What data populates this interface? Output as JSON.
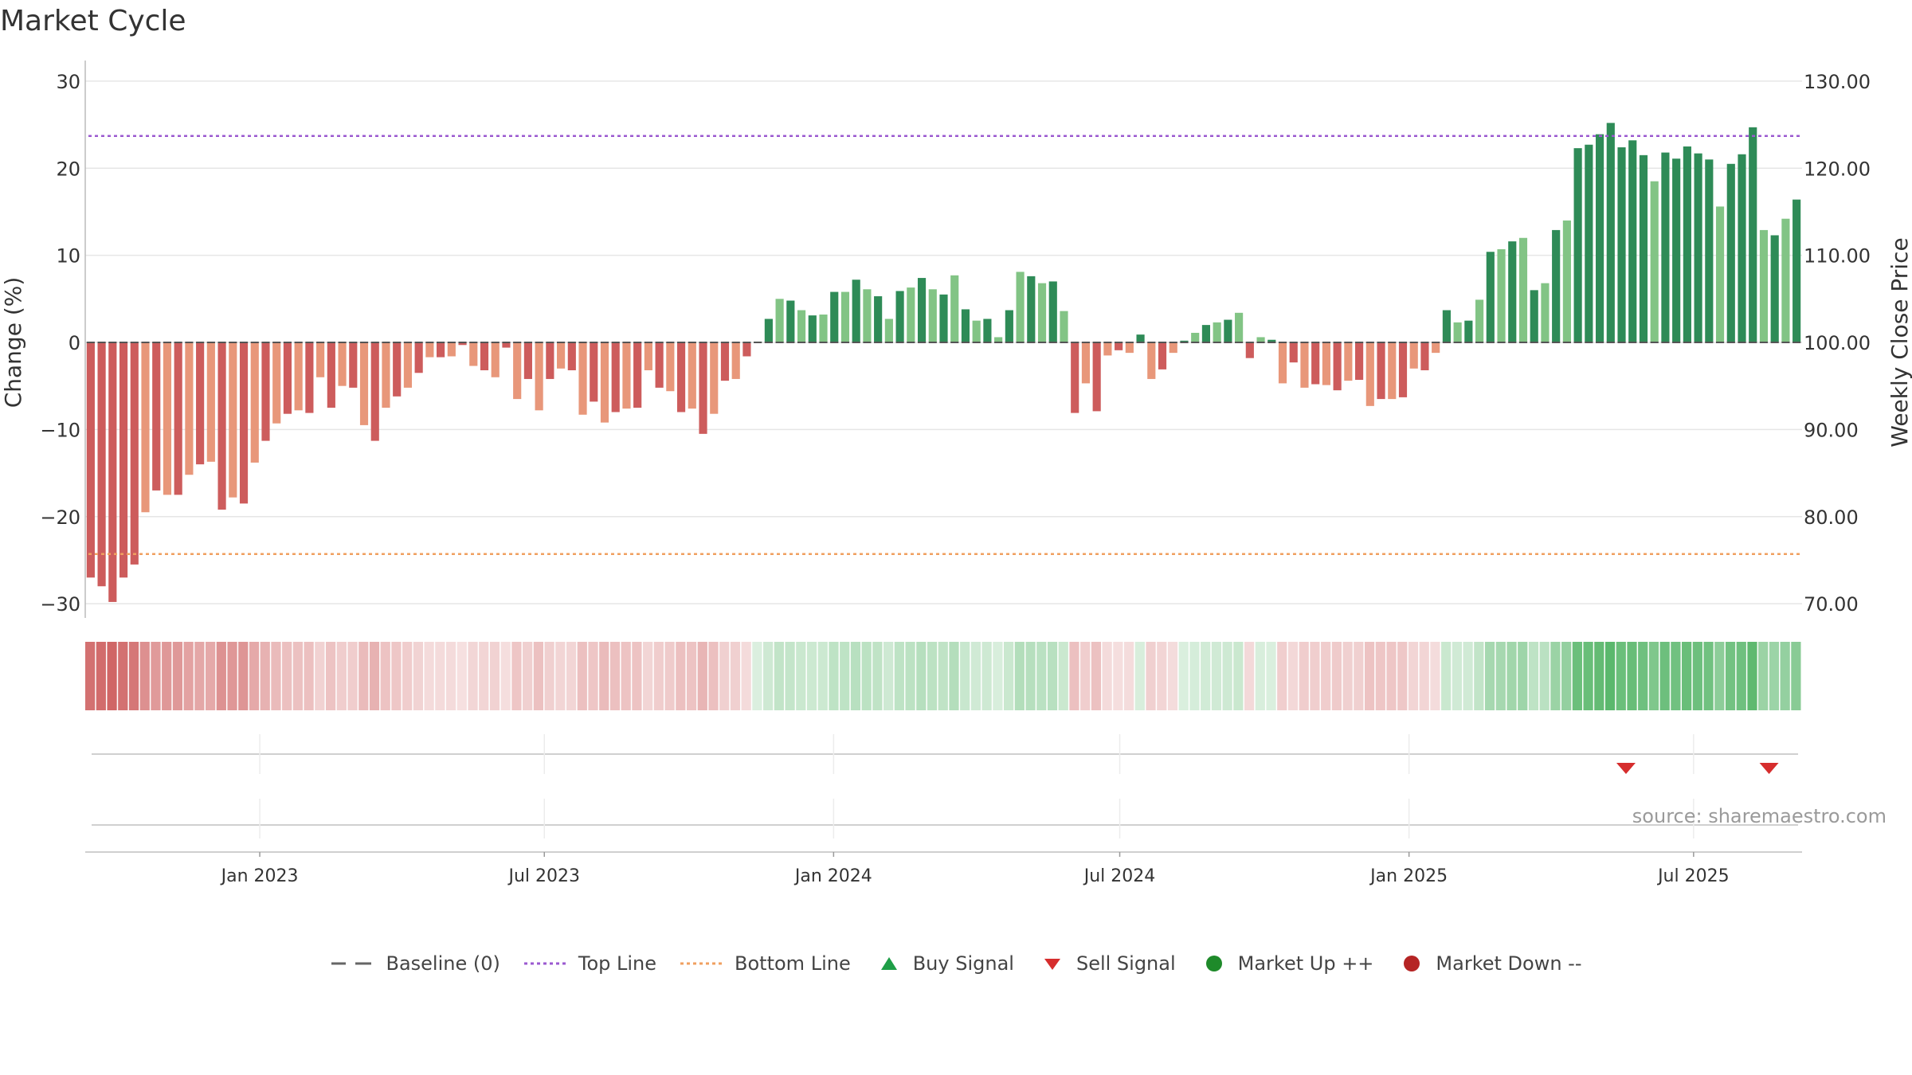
{
  "title": "Market Cycle",
  "source": "source: sharemaestro.com",
  "chart_data": {
    "type": "bar",
    "title": "Market Cycle",
    "ylabel": "Change (%)",
    "y2label": "Weekly Close Price",
    "ylim": [
      -32,
      32
    ],
    "y2lim": [
      68.0,
      132.0
    ],
    "yticks": [
      -30,
      -20,
      -10,
      0,
      10,
      20,
      30
    ],
    "yticklabels": [
      "−30",
      "−20",
      "−10",
      "0",
      "10",
      "20",
      "30"
    ],
    "y2ticks": [
      70,
      80,
      90,
      100,
      110,
      120,
      130
    ],
    "y2ticklabels": [
      "70.00",
      "80.00",
      "90.00",
      "100.00",
      "110.00",
      "120.00",
      "130.00"
    ],
    "top_line": 23.7,
    "bottom_line": -24.3,
    "x_start": "2022-09-12",
    "x_end": "2025-09-08",
    "x_ticks": [
      {
        "date": "2023-01-01",
        "label": "Jan 2023"
      },
      {
        "date": "2023-07-01",
        "label": "Jul 2023"
      },
      {
        "date": "2024-01-01",
        "label": "Jan 2024"
      },
      {
        "date": "2024-07-01",
        "label": "Jul 2024"
      },
      {
        "date": "2025-01-01",
        "label": "Jan 2025"
      },
      {
        "date": "2025-07-01",
        "label": "Jul 2025"
      }
    ],
    "series": [
      {
        "name": "Change (%)",
        "values": [
          -27.0,
          -28.0,
          -29.8,
          -27.0,
          -25.5,
          -19.5,
          -17.0,
          -17.5,
          -17.5,
          -15.2,
          -14.0,
          -13.7,
          -19.2,
          -17.8,
          -18.5,
          -13.8,
          -11.3,
          -9.3,
          -8.2,
          -7.8,
          -8.1,
          -4.0,
          -7.5,
          -5.0,
          -5.2,
          -9.5,
          -11.3,
          -7.5,
          -6.2,
          -5.2,
          -3.5,
          -1.7,
          -1.7,
          -1.6,
          -0.3,
          -2.7,
          -3.2,
          -4.0,
          -0.6,
          -6.5,
          -4.2,
          -7.8,
          -4.2,
          -3.0,
          -3.2,
          -8.3,
          -6.8,
          -9.2,
          -8.0,
          -7.6,
          -7.5,
          -3.2,
          -5.2,
          -5.6,
          -8.0,
          -7.6,
          -10.5,
          -8.2,
          -4.4,
          -4.2,
          -1.6,
          0.1,
          2.7,
          5.0,
          4.8,
          3.7,
          3.1,
          3.2,
          5.8,
          5.8,
          7.2,
          6.1,
          5.3,
          2.7,
          5.9,
          6.3,
          7.4,
          6.1,
          5.5,
          7.7,
          3.8,
          2.5,
          2.7,
          0.6,
          3.7,
          8.1,
          7.6,
          6.8,
          7.0,
          3.6,
          -8.1,
          -4.7,
          -7.9,
          -1.5,
          -0.9,
          -1.2,
          0.9,
          -4.2,
          -3.1,
          -1.2,
          0.2,
          1.1,
          2.0,
          2.3,
          2.6,
          3.4,
          -1.8,
          0.6,
          0.3,
          -4.7,
          -2.3,
          -5.2,
          -4.8,
          -4.9,
          -5.5,
          -4.4,
          -4.3,
          -7.3,
          -6.5,
          -6.5,
          -6.3,
          -3.0,
          -3.2,
          -1.2,
          3.7,
          2.3,
          2.5,
          4.9,
          10.4,
          10.7,
          11.6,
          12.0,
          6.0,
          6.8,
          12.9,
          14.0,
          22.3,
          22.7,
          23.9,
          25.2,
          22.4,
          23.2,
          21.5,
          18.5,
          21.8,
          21.1,
          22.5,
          21.7,
          21.0,
          15.6,
          20.5,
          21.6,
          24.7,
          12.9,
          12.3,
          14.2,
          16.4
        ]
      }
    ],
    "legend": [
      {
        "label": "Baseline (0)",
        "symbol": "dash",
        "color": "#666666"
      },
      {
        "label": "Top Line",
        "symbol": "dot-line",
        "color": "#9b59d0"
      },
      {
        "label": "Bottom Line",
        "symbol": "dot-line",
        "color": "#f0a060"
      },
      {
        "label": "Buy Signal",
        "symbol": "triangle-up",
        "color": "#1e9e47"
      },
      {
        "label": "Sell Signal",
        "symbol": "triangle-down",
        "color": "#d62d2d"
      },
      {
        "label": "Market Up ++",
        "symbol": "circle",
        "color": "#1e8a2a"
      },
      {
        "label": "Market Down --",
        "symbol": "circle",
        "color": "#b52424"
      }
    ],
    "sell_signals": [
      "2025-05-19",
      "2025-08-18"
    ],
    "buy_signals": [],
    "colors": {
      "strong_down": "#cd5c5c",
      "weak_down": "#e8977a",
      "strong_up": "#2e8b57",
      "weak_up": "#82c485",
      "strip_down": "#cd5c5c",
      "strip_up": "#3aa94f",
      "grid": "#e6e6e6",
      "top_line": "#9b59d0",
      "bottom_line": "#f0a060"
    }
  }
}
